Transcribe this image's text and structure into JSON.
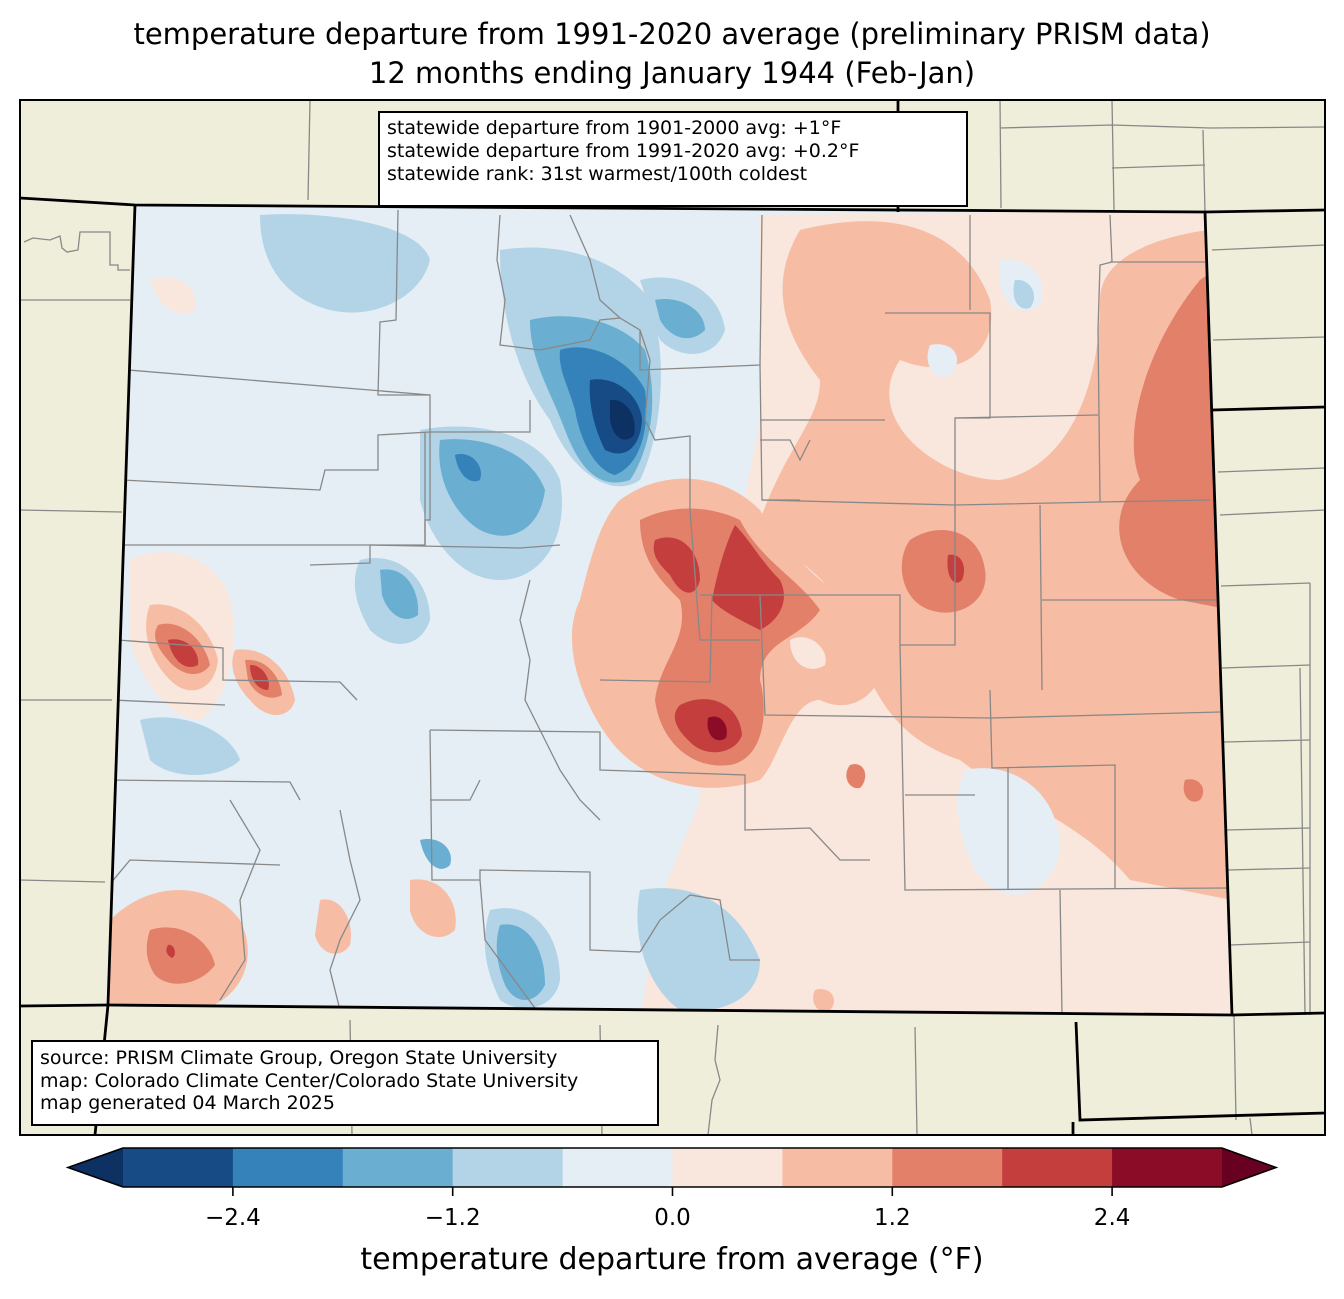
{
  "title": {
    "line1": "temperature departure from 1991-2020 average (preliminary PRISM data)",
    "line2": "12 months ending January 1944 (Feb-Jan)"
  },
  "stats_box": {
    "line1": "statewide departure from 1901-2000 avg: +1°F",
    "line2": "statewide departure from 1991-2020 avg: +0.2°F",
    "line3": "statewide rank: 31st warmest/100th coldest"
  },
  "source_box": {
    "line1": "source: PRISM Climate Group, Oregon State University",
    "line2": "map: Colorado Climate Center/Colorado State University",
    "line3": "map generated 04 March 2025"
  },
  "colorbar": {
    "label": "temperature departure from average (°F)",
    "boundaries": [
      -3.0,
      -2.4,
      -1.8,
      -1.2,
      -0.6,
      0.0,
      0.6,
      1.2,
      1.8,
      2.4,
      3.0
    ],
    "colors": [
      "#164b86",
      "#3581b9",
      "#6aaed1",
      "#b2d4e6",
      "#e5eef5",
      "#f9e7de",
      "#f7bda4",
      "#e2806a",
      "#c53e3e",
      "#8a0c27"
    ],
    "under_color": "#0d3162",
    "over_color": "#670021",
    "ticks": [
      {
        "value": -2.4,
        "label": "−2.4"
      },
      {
        "value": -1.2,
        "label": "−1.2"
      },
      {
        "value": 0.0,
        "label": "0.0"
      },
      {
        "value": 1.2,
        "label": "1.2"
      },
      {
        "value": 2.4,
        "label": "2.4"
      }
    ]
  },
  "map_colors": {
    "land": "#efeedb",
    "state_border": "#000000",
    "county_border": "#888888"
  }
}
